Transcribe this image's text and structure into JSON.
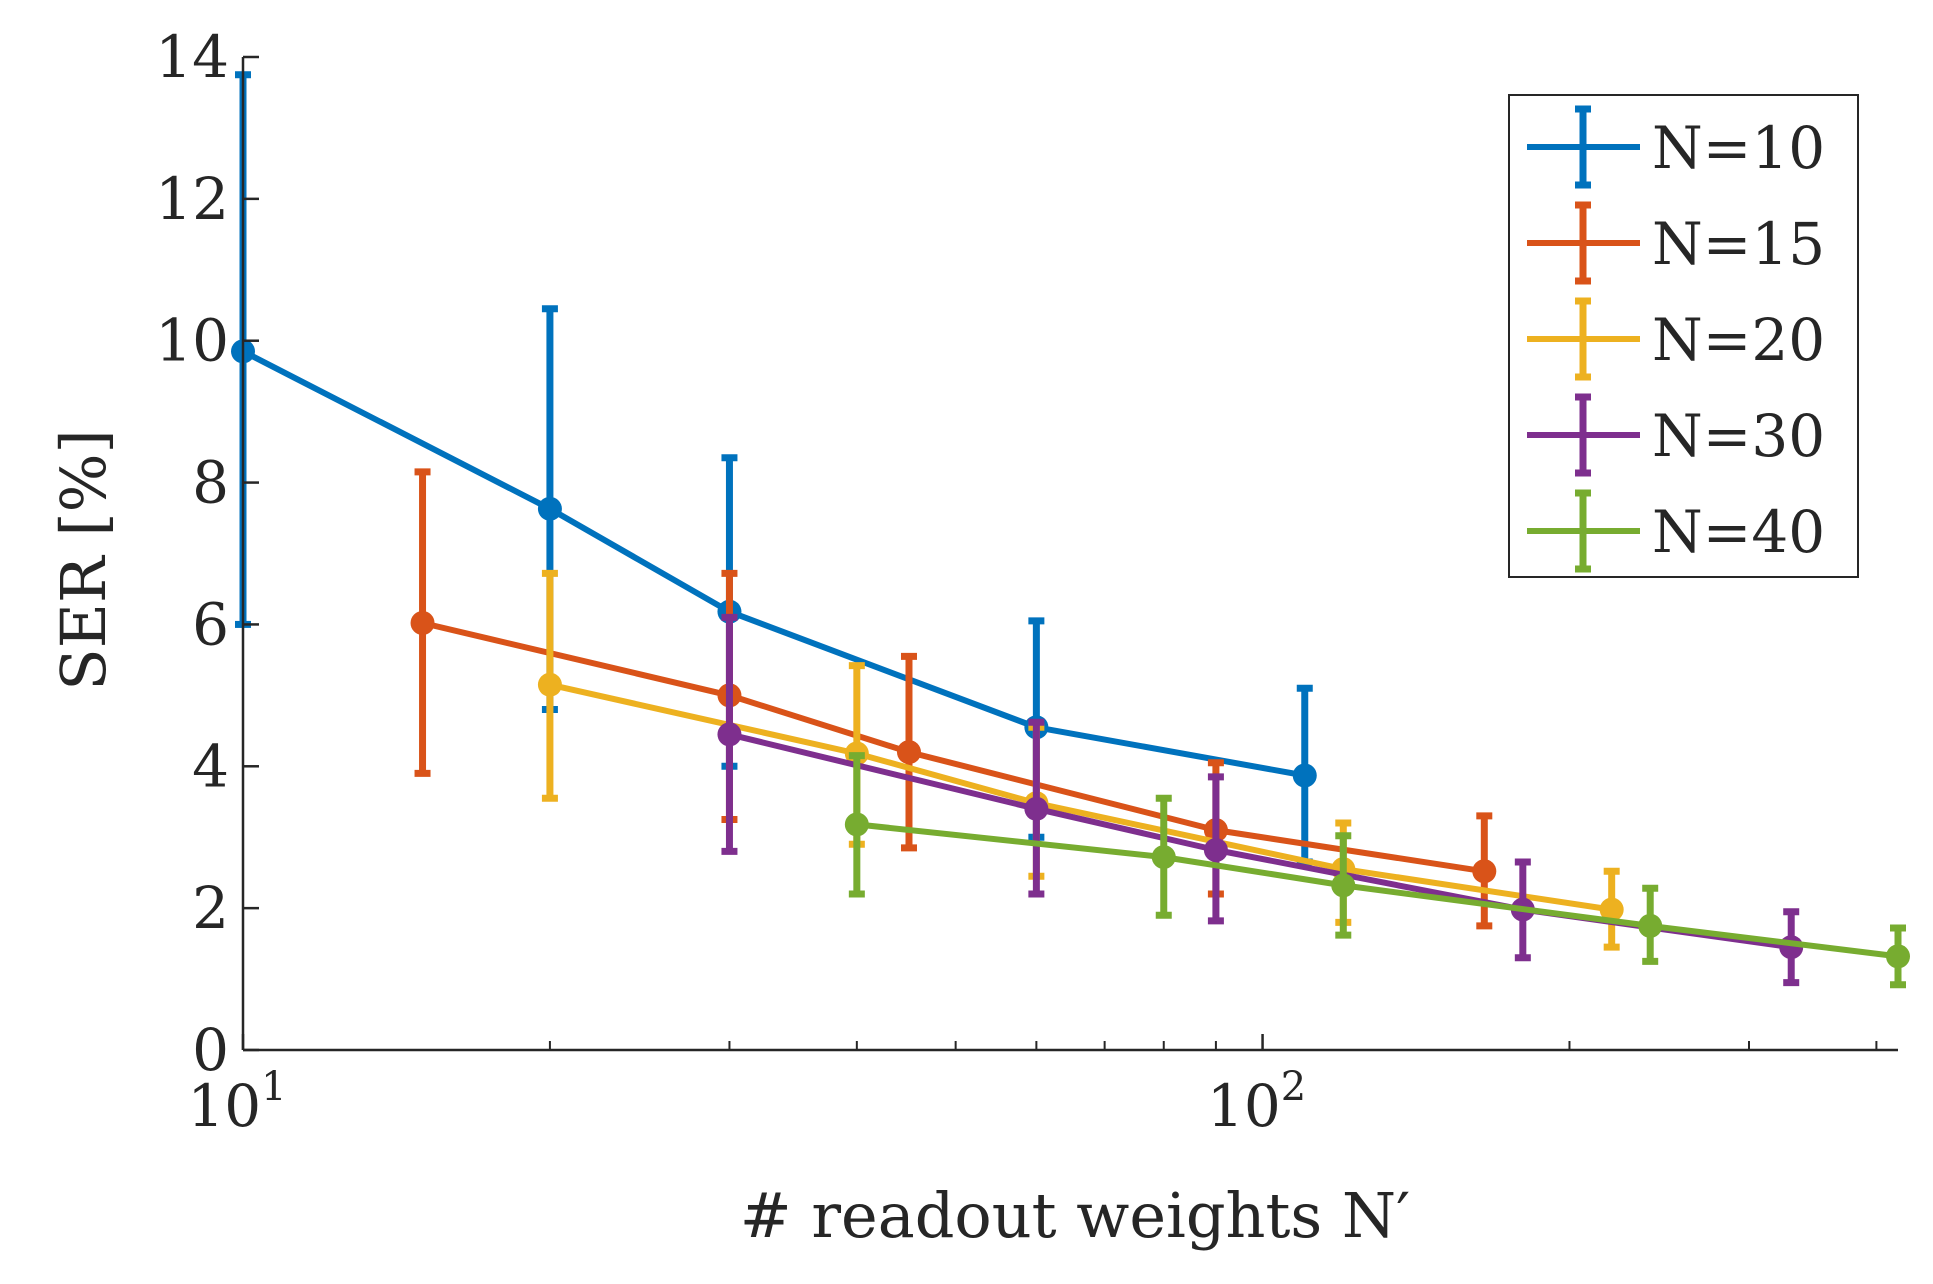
{
  "chart_data": {
    "type": "line",
    "title": "",
    "xlabel": "# readout weights N′",
    "ylabel": "SER [%]",
    "xscale": "log",
    "xlim": [
      10,
      420
    ],
    "ylim": [
      0,
      14
    ],
    "yticks": [
      0,
      2,
      4,
      6,
      8,
      10,
      12,
      14
    ],
    "ytick_labels": [
      "0",
      "2",
      "4",
      "6",
      "8",
      "10",
      "12",
      "14"
    ],
    "xticks": [
      10,
      100
    ],
    "xtick_labels": [
      {
        "base": "10",
        "exp": "1"
      },
      {
        "base": "10",
        "exp": "2"
      }
    ],
    "grid": false,
    "legend_position": "top-right",
    "error_bars": true,
    "series": [
      {
        "name": "N=10",
        "color": "#0072BD",
        "x": [
          10,
          20,
          30,
          60,
          110
        ],
        "y": [
          9.85,
          7.63,
          6.18,
          4.55,
          3.87
        ],
        "err_low": [
          6.0,
          4.8,
          4.0,
          3.0,
          2.65
        ],
        "err_high": [
          13.75,
          10.45,
          8.35,
          6.05,
          5.1
        ]
      },
      {
        "name": "N=15",
        "color": "#D95319",
        "x": [
          15,
          30,
          45,
          90,
          165
        ],
        "y": [
          6.02,
          5.0,
          4.2,
          3.1,
          2.52
        ],
        "err_low": [
          3.9,
          3.25,
          2.85,
          2.2,
          1.75
        ],
        "err_high": [
          8.15,
          6.72,
          5.55,
          4.05,
          3.3
        ]
      },
      {
        "name": "N=20",
        "color": "#EDB120",
        "x": [
          20,
          40,
          60,
          120,
          220
        ],
        "y": [
          5.15,
          4.18,
          3.48,
          2.55,
          1.98
        ],
        "err_low": [
          3.55,
          2.9,
          2.45,
          1.8,
          1.45
        ],
        "err_high": [
          6.72,
          5.42,
          4.55,
          3.2,
          2.52
        ]
      },
      {
        "name": "N=30",
        "color": "#7E2F8E",
        "x": [
          30,
          60,
          90,
          180,
          330
        ],
        "y": [
          4.45,
          3.4,
          2.82,
          1.98,
          1.45
        ],
        "err_low": [
          2.8,
          2.2,
          1.82,
          1.3,
          0.95
        ],
        "err_high": [
          6.1,
          4.62,
          3.85,
          2.65,
          1.95
        ]
      },
      {
        "name": "N=40",
        "color": "#77AC30",
        "x": [
          40,
          80,
          120,
          240,
          420
        ],
        "y": [
          3.18,
          2.72,
          2.32,
          1.75,
          1.32
        ],
        "err_low": [
          2.2,
          1.9,
          1.62,
          1.25,
          0.92
        ],
        "err_high": [
          4.15,
          3.55,
          3.02,
          2.28,
          1.72
        ]
      }
    ]
  }
}
